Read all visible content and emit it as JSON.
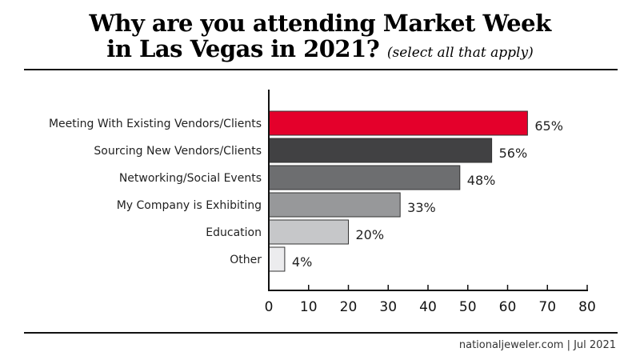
{
  "title_line1": "Why are you attending Market Week",
  "title_line2": "in Las Vegas in 2021?",
  "title_note": "(select all that apply)",
  "footer": "nationaljeweler.com  |  Jul 2021",
  "chart_data": {
    "type": "bar",
    "orientation": "horizontal",
    "categories": [
      "Meeting With Existing Vendors/Clients",
      "Sourcing New Vendors/Clients",
      "Networking/Social Events",
      "My Company is Exhibiting",
      "Education",
      "Other"
    ],
    "values": [
      65,
      56,
      48,
      33,
      20,
      4
    ],
    "data_labels": [
      "65%",
      "56%",
      "48%",
      "33%",
      "20%",
      "4%"
    ],
    "bar_colors": [
      "#e4002b",
      "#414143",
      "#6d6e70",
      "#97989a",
      "#c6c7c9",
      "#ececee"
    ],
    "xlim": [
      0,
      80
    ],
    "xticks": [
      0,
      10,
      20,
      30,
      40,
      50,
      60,
      70,
      80
    ],
    "grid": false
  }
}
